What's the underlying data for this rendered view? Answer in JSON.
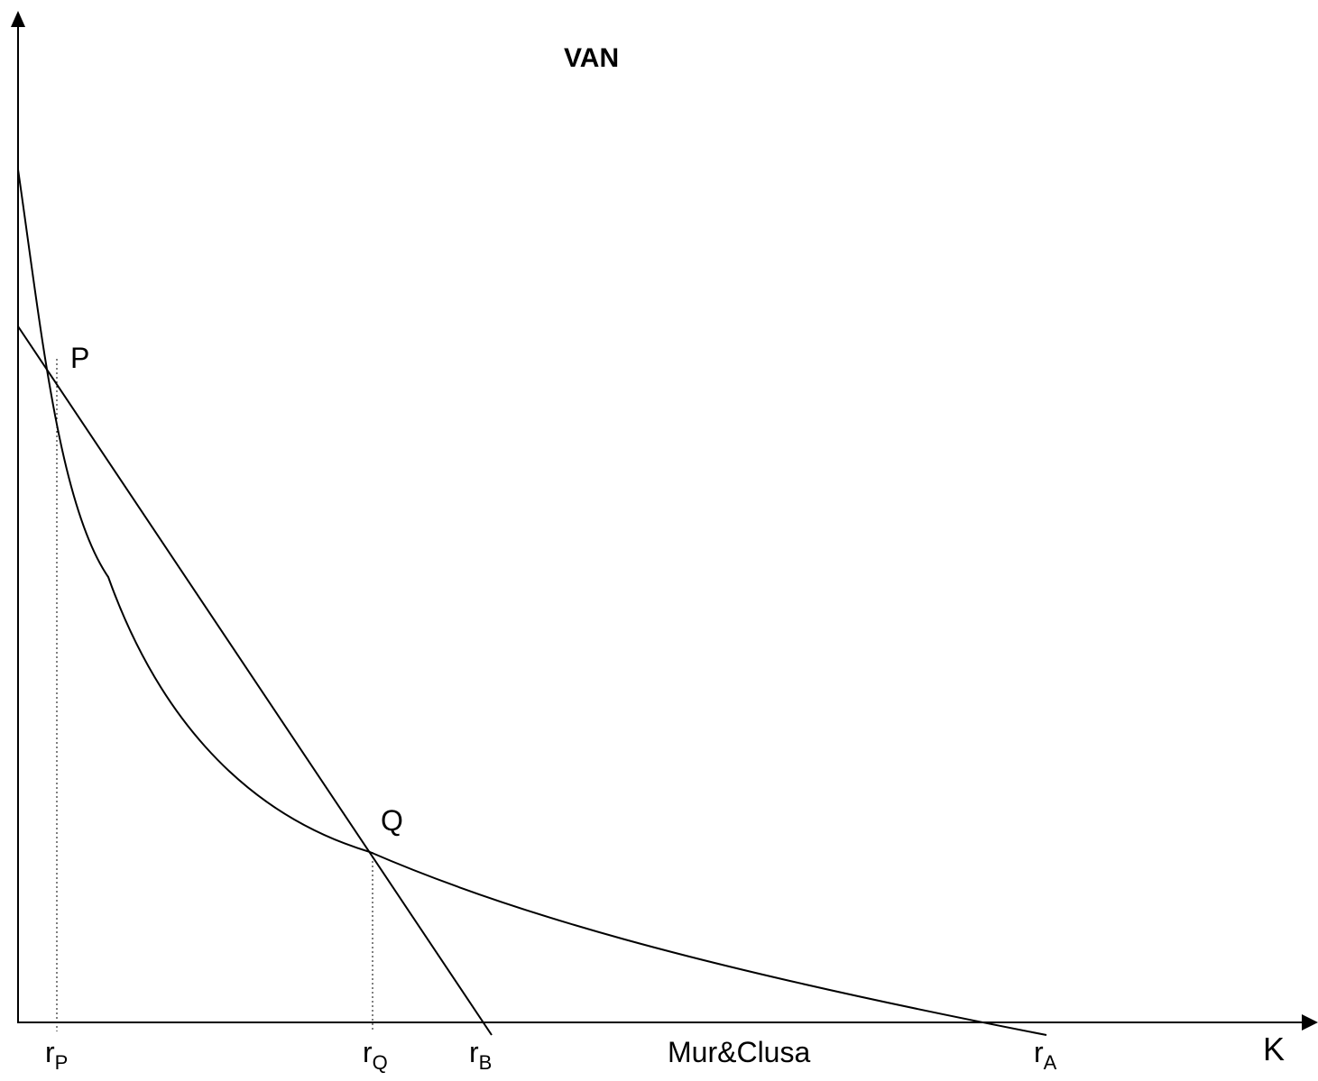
{
  "title": "VAN",
  "x_axis_label": "K",
  "watermark": "Mur&Clusa",
  "points": {
    "p": "P",
    "q": "Q"
  },
  "ticks": [
    {
      "base": "r",
      "sub": "P"
    },
    {
      "base": "r",
      "sub": "Q"
    },
    {
      "base": "r",
      "sub": "B"
    },
    {
      "base": "r",
      "sub": "A"
    }
  ],
  "curves": {
    "a": "r_A",
    "b": "r_B"
  },
  "colors": {
    "line": "#000000",
    "background": "#ffffff"
  }
}
